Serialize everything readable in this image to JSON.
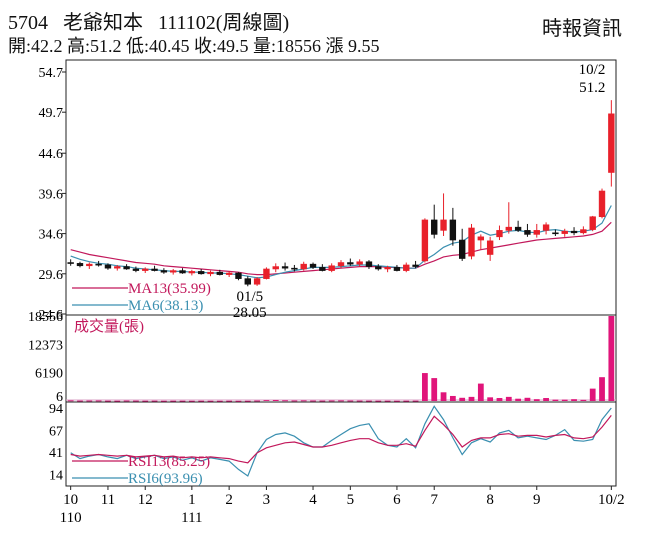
{
  "header": {
    "stock_code": "5704",
    "stock_name": "老爺知本",
    "date": "111102",
    "period": "(周線圖)",
    "stats_line": "開:42.2 高:51.2 低:40.45 收:49.5 量:18556 漲 9.55",
    "source": "時報資訊"
  },
  "chart_data": [
    {
      "type": "candlestick",
      "panel": "price",
      "y_ticks": [
        "54.7",
        "49.7",
        "44.6",
        "39.6",
        "34.6",
        "29.6",
        "24.6"
      ],
      "ylim": [
        24.6,
        54.7
      ],
      "x_ticks": [
        "10",
        "11",
        "12",
        "1",
        "2",
        "3",
        "4",
        "5",
        "6",
        "7",
        "8",
        "9",
        "10/2"
      ],
      "x_ticks_year": [
        "110",
        "111"
      ],
      "annotations": [
        {
          "label": "10/2",
          "text": "51.2"
        },
        {
          "label": "01/5",
          "text": "28.05"
        }
      ],
      "legend": [
        {
          "name": "MA13(35.99)",
          "color": "#c2185b"
        },
        {
          "name": "MA6(38.13)",
          "color": "#3a8fb0"
        }
      ],
      "candles": [
        [
          31.0,
          31.4,
          30.6,
          30.9
        ],
        [
          30.9,
          31.1,
          30.4,
          30.6
        ],
        [
          30.6,
          31.0,
          30.2,
          30.8
        ],
        [
          30.8,
          31.2,
          30.5,
          30.7
        ],
        [
          30.7,
          30.9,
          30.1,
          30.3
        ],
        [
          30.3,
          30.7,
          30.0,
          30.5
        ],
        [
          30.5,
          30.8,
          30.1,
          30.2
        ],
        [
          30.2,
          30.5,
          29.8,
          30.0
        ],
        [
          30.0,
          30.4,
          29.7,
          30.2
        ],
        [
          30.2,
          30.6,
          29.9,
          30.0
        ],
        [
          30.0,
          30.3,
          29.6,
          29.8
        ],
        [
          29.8,
          30.2,
          29.5,
          30.0
        ],
        [
          30.0,
          30.3,
          29.6,
          29.7
        ],
        [
          29.7,
          30.1,
          29.4,
          29.9
        ],
        [
          29.9,
          30.2,
          29.5,
          29.6
        ],
        [
          29.6,
          30.0,
          29.3,
          29.8
        ],
        [
          29.8,
          30.1,
          29.4,
          29.5
        ],
        [
          29.5,
          29.9,
          29.2,
          29.7
        ],
        [
          29.7,
          29.8,
          28.8,
          29.0
        ],
        [
          29.0,
          29.3,
          28.05,
          28.3
        ],
        [
          28.3,
          29.2,
          28.1,
          29.0
        ],
        [
          29.0,
          30.4,
          28.9,
          30.2
        ],
        [
          30.2,
          30.9,
          29.8,
          30.5
        ],
        [
          30.5,
          31.0,
          30.0,
          30.3
        ],
        [
          30.3,
          30.7,
          29.9,
          30.2
        ],
        [
          30.2,
          31.1,
          30.0,
          30.8
        ],
        [
          30.8,
          31.0,
          30.2,
          30.4
        ],
        [
          30.4,
          30.8,
          29.9,
          30.0
        ],
        [
          30.0,
          30.9,
          29.8,
          30.6
        ],
        [
          30.6,
          31.3,
          30.3,
          31.0
        ],
        [
          31.0,
          31.5,
          30.6,
          30.8
        ],
        [
          30.8,
          31.4,
          30.5,
          31.1
        ],
        [
          31.1,
          31.3,
          30.2,
          30.5
        ],
        [
          30.5,
          30.8,
          30.0,
          30.2
        ],
        [
          30.2,
          30.6,
          29.8,
          30.4
        ],
        [
          30.4,
          30.7,
          29.9,
          30.0
        ],
        [
          30.0,
          31.0,
          29.8,
          30.7
        ],
        [
          30.7,
          31.2,
          30.3,
          30.5
        ],
        [
          31.2,
          36.5,
          31.0,
          36.3
        ],
        [
          36.3,
          38.2,
          34.0,
          34.5
        ],
        [
          35.0,
          39.6,
          34.3,
          36.3
        ],
        [
          36.3,
          37.8,
          33.1,
          33.8
        ],
        [
          33.8,
          35.2,
          31.2,
          31.5
        ],
        [
          31.8,
          35.8,
          31.4,
          35.3
        ],
        [
          33.8,
          34.5,
          32.6,
          34.2
        ],
        [
          32.0,
          34.2,
          31.2,
          33.7
        ],
        [
          34.2,
          35.6,
          33.8,
          35.0
        ],
        [
          35.0,
          38.5,
          34.6,
          35.4
        ],
        [
          35.4,
          36.2,
          34.8,
          35.0
        ],
        [
          35.0,
          35.8,
          34.2,
          34.5
        ],
        [
          34.5,
          35.8,
          34.1,
          35.0
        ],
        [
          35.0,
          36.0,
          34.5,
          35.7
        ],
        [
          34.7,
          35.1,
          34.3,
          34.6
        ],
        [
          34.6,
          35.2,
          34.2,
          34.9
        ],
        [
          34.9,
          35.4,
          34.4,
          34.7
        ],
        [
          34.7,
          35.5,
          34.5,
          35.1
        ],
        [
          35.1,
          36.8,
          34.9,
          36.7
        ],
        [
          36.7,
          40.2,
          36.5,
          39.9
        ],
        [
          42.2,
          51.2,
          40.45,
          49.5
        ]
      ],
      "ma13": [
        32.6,
        32.3,
        32.0,
        31.8,
        31.6,
        31.4,
        31.2,
        31.0,
        30.9,
        30.8,
        30.6,
        30.5,
        30.4,
        30.3,
        30.2,
        30.1,
        30.0,
        29.9,
        29.8,
        29.6,
        29.5,
        29.5,
        29.6,
        29.7,
        29.8,
        29.9,
        30.0,
        30.1,
        30.2,
        30.3,
        30.4,
        30.5,
        30.5,
        30.5,
        30.4,
        30.4,
        30.3,
        30.3,
        30.8,
        31.2,
        31.7,
        31.9,
        32.0,
        32.3,
        32.6,
        32.8,
        33.0,
        33.2,
        33.4,
        33.6,
        33.8,
        33.9,
        34.0,
        34.1,
        34.2,
        34.3,
        34.5,
        34.9,
        36.0
      ],
      "ma6": [
        31.8,
        31.4,
        31.1,
        30.9,
        30.8,
        30.6,
        30.5,
        30.3,
        30.2,
        30.1,
        30.0,
        29.9,
        29.9,
        29.8,
        29.8,
        29.7,
        29.7,
        29.6,
        29.5,
        29.3,
        29.1,
        29.2,
        29.5,
        29.8,
        30.0,
        30.2,
        30.4,
        30.4,
        30.4,
        30.5,
        30.6,
        30.7,
        30.7,
        30.6,
        30.5,
        30.4,
        30.3,
        30.3,
        31.3,
        32.0,
        32.9,
        33.4,
        33.6,
        34.4,
        34.9,
        34.4,
        34.6,
        34.9,
        35.0,
        34.8,
        34.7,
        35.0,
        35.1,
        34.9,
        34.8,
        34.9,
        35.1,
        35.9,
        38.1
      ]
    },
    {
      "type": "bar",
      "panel": "volume",
      "title": "成交量(張)",
      "y_ticks": [
        "18556",
        "12373",
        "6190",
        "6"
      ],
      "ylim": [
        0,
        18556
      ],
      "values": [
        120,
        80,
        90,
        100,
        70,
        60,
        90,
        80,
        60,
        70,
        50,
        60,
        60,
        50,
        60,
        50,
        50,
        60,
        40,
        50,
        90,
        180,
        220,
        140,
        100,
        120,
        90,
        80,
        100,
        110,
        90,
        80,
        70,
        60,
        60,
        50,
        60,
        70,
        6100,
        5000,
        1900,
        1100,
        700,
        900,
        3800,
        800,
        650,
        900,
        500,
        700,
        400,
        650,
        300,
        300,
        400,
        250,
        2700,
        5200,
        18556
      ]
    },
    {
      "type": "line",
      "panel": "rsi",
      "y_ticks": [
        "94",
        "67",
        "41",
        "14"
      ],
      "ylim": [
        0,
        100
      ],
      "legend": [
        {
          "name": "RSI13(85.25)",
          "color": "#c2185b"
        },
        {
          "name": "RSI6(93.96)",
          "color": "#3a8fb0"
        }
      ],
      "rsi13": [
        38,
        36,
        37,
        38,
        37,
        36,
        37,
        35,
        36,
        37,
        35,
        36,
        34,
        35,
        34,
        35,
        34,
        33,
        30,
        28,
        40,
        46,
        49,
        52,
        53,
        50,
        47,
        47,
        49,
        52,
        55,
        57,
        57,
        52,
        49,
        49,
        51,
        48,
        67,
        84,
        74,
        62,
        47,
        55,
        58,
        58,
        62,
        63,
        60,
        61,
        61,
        59,
        61,
        62,
        58,
        57,
        59,
        71,
        85
      ],
      "rsi6": [
        40,
        33,
        36,
        38,
        35,
        33,
        37,
        33,
        35,
        37,
        33,
        35,
        31,
        34,
        30,
        34,
        32,
        30,
        20,
        12,
        40,
        56,
        62,
        64,
        60,
        52,
        47,
        47,
        55,
        62,
        69,
        73,
        75,
        57,
        49,
        47,
        57,
        46,
        75,
        96,
        80,
        58,
        38,
        52,
        57,
        53,
        64,
        67,
        58,
        60,
        58,
        56,
        61,
        68,
        55,
        54,
        56,
        80,
        94
      ]
    }
  ]
}
